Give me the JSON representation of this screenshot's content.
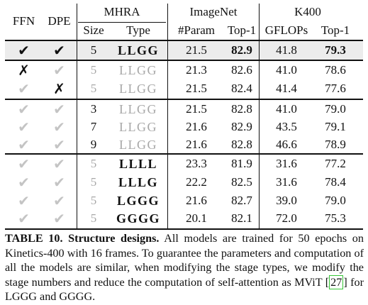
{
  "header": {
    "ffn": "FFN",
    "dpe": "DPE",
    "mhra": "MHRA",
    "imagenet": "ImageNet",
    "k400": "K400",
    "size": "Size",
    "type": "Type",
    "param": "#Param",
    "top1_in": "Top-1",
    "gflops": "GFLOPs",
    "top1_k": "Top-1"
  },
  "rows": [
    {
      "ffn": "✔",
      "dpe": "✔",
      "size": "5",
      "type": "LLGG",
      "param": "21.5",
      "top1_in": "82.9",
      "gflops": "41.8",
      "top1_k": "79.3"
    },
    {
      "ffn": "✗",
      "dpe": "✔",
      "size": "5",
      "type": "LLGG",
      "param": "21.3",
      "top1_in": "82.6",
      "gflops": "41.0",
      "top1_k": "78.6"
    },
    {
      "ffn": "✔",
      "dpe": "✗",
      "size": "5",
      "type": "LLGG",
      "param": "21.5",
      "top1_in": "82.4",
      "gflops": "41.4",
      "top1_k": "77.6"
    },
    {
      "ffn": "✔",
      "dpe": "✔",
      "size": "3",
      "type": "LLGG",
      "param": "21.5",
      "top1_in": "82.8",
      "gflops": "41.0",
      "top1_k": "79.0"
    },
    {
      "ffn": "✔",
      "dpe": "✔",
      "size": "7",
      "type": "LLGG",
      "param": "21.6",
      "top1_in": "82.9",
      "gflops": "43.5",
      "top1_k": "79.1"
    },
    {
      "ffn": "✔",
      "dpe": "✔",
      "size": "9",
      "type": "LLGG",
      "param": "21.6",
      "top1_in": "82.8",
      "gflops": "46.6",
      "top1_k": "78.9"
    },
    {
      "ffn": "✔",
      "dpe": "✔",
      "size": "5",
      "type": "LLLL",
      "param": "23.3",
      "top1_in": "81.9",
      "gflops": "31.6",
      "top1_k": "77.2"
    },
    {
      "ffn": "✔",
      "dpe": "✔",
      "size": "5",
      "type": "LLLG",
      "param": "22.2",
      "top1_in": "82.5",
      "gflops": "31.6",
      "top1_k": "78.4"
    },
    {
      "ffn": "✔",
      "dpe": "✔",
      "size": "5",
      "type": "LGGG",
      "param": "21.6",
      "top1_in": "82.7",
      "gflops": "39.0",
      "top1_k": "79.0"
    },
    {
      "ffn": "✔",
      "dpe": "✔",
      "size": "5",
      "type": "GGGG",
      "param": "20.1",
      "top1_in": "82.1",
      "gflops": "72.0",
      "top1_k": "75.3"
    }
  ],
  "caption": {
    "label": "TABLE 10. Structure designs.",
    "text_a": " All models are trained for 50 epochs on Kinetics-400 with 16 frames. To guarantee the parameters and computation of all the models are similar, when modifying the stage types, we modify the stage numbers and reduce the computation of self-attention as MViT [",
    "ref": "27",
    "text_b": "] for LGGG and GGGG."
  },
  "colors": {
    "highlight_row": "#ececec",
    "muted_text": "#a8a8a8",
    "citation_box": "#36c636"
  }
}
